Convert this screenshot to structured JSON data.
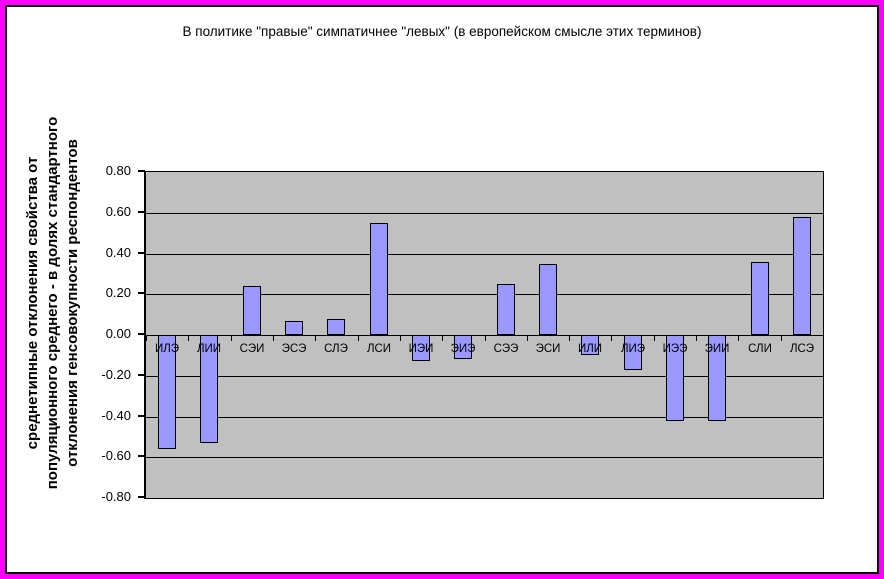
{
  "window": {
    "background_color": "#FFFFFF",
    "outer_border_color": "#FF00FF",
    "inner_border_color": "#000000"
  },
  "chart_data": {
    "type": "bar",
    "title": "В политике \"правые\" симпатичнее \"левых\" (в европейском смысле этих терминов)",
    "xlabel": "",
    "ylabel": "среднетипные отклонения свойства от популяционного среднего - в долях стандартного отклонения генсовокупности респондентов",
    "ylabel_lines": [
      "среднетипные отклонения свойства от",
      "популяционного среднего - в долях стандартного",
      "отклонения генсовокупности респондентов"
    ],
    "categories": [
      "ИЛЭ",
      "ЛИИ",
      "СЭИ",
      "ЭСЭ",
      "СЛЭ",
      "ЛСИ",
      "ИЭИ",
      "ЭИЭ",
      "СЭЭ",
      "ЭСИ",
      "ИЛИ",
      "ЛИЭ",
      "ИЭЭ",
      "ЭИИ",
      "СЛИ",
      "ЛСЭ"
    ],
    "values": [
      -0.56,
      -0.53,
      0.24,
      0.07,
      0.08,
      0.55,
      -0.13,
      -0.12,
      0.25,
      0.35,
      -0.1,
      -0.17,
      -0.42,
      -0.42,
      0.36,
      0.58
    ],
    "ylim": [
      -0.8,
      0.8
    ],
    "ytick_step": 0.2,
    "ytick_labels": [
      "0.80",
      "0.60",
      "0.40",
      "0.20",
      "0.00",
      "-0.20",
      "-0.40",
      "-0.60",
      "-0.80"
    ],
    "grid": true,
    "legend": "none",
    "bar_fill_color": "#9999FF",
    "bar_border_color": "#000000",
    "plot_bg_color": "#C0C0C0",
    "grid_color": "#000000"
  }
}
